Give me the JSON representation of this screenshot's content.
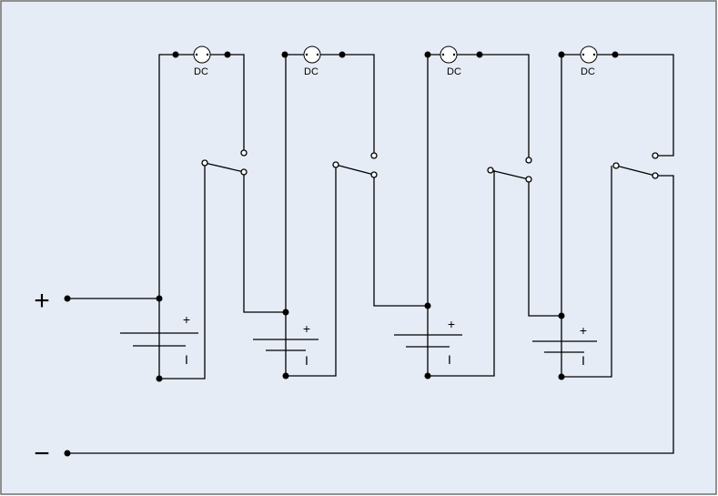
{
  "diagram": {
    "colors": {
      "background": "#e6ecf6",
      "border": "#6f6f6f",
      "line": "#000000"
    },
    "terminals": {
      "positive": "+",
      "negative": "−"
    },
    "stages": [
      {
        "lamp_label": "DC",
        "battery_plus": "+",
        "battery_minus": "I"
      },
      {
        "lamp_label": "DC",
        "battery_plus": "+",
        "battery_minus": "I"
      },
      {
        "lamp_label": "DC",
        "battery_plus": "+",
        "battery_minus": "I"
      },
      {
        "lamp_label": "DC",
        "battery_plus": "+",
        "battery_minus": "I"
      }
    ]
  }
}
